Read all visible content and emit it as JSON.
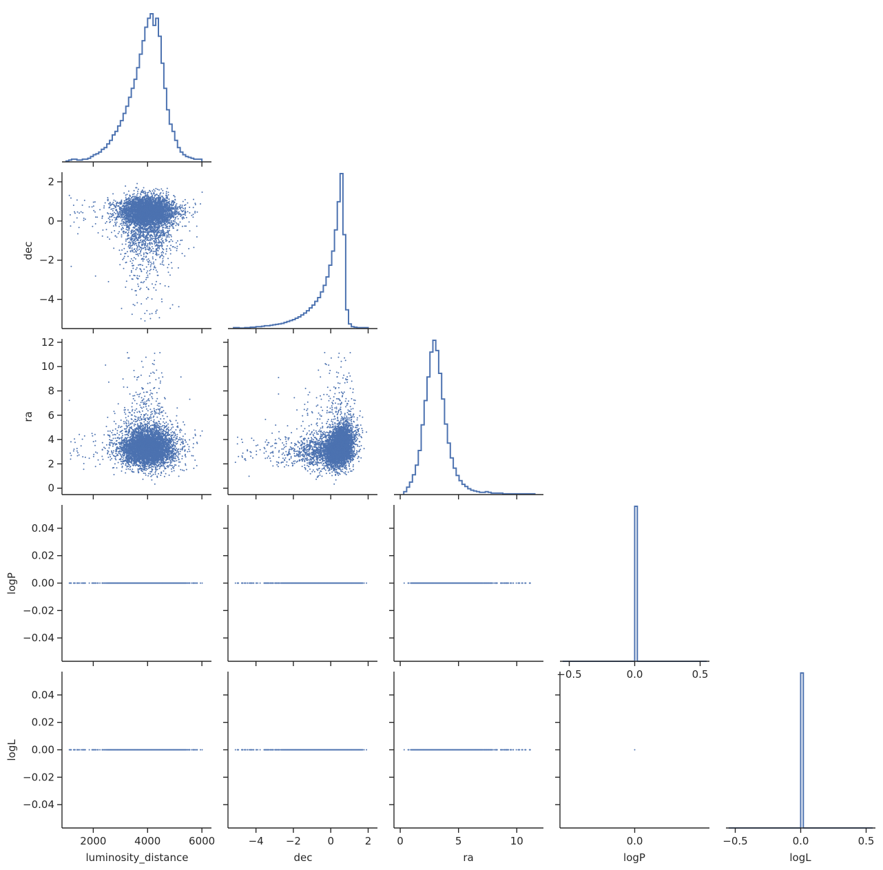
{
  "chart_data": {
    "type": "scatter",
    "layout": "corner-pair-plot",
    "variables": [
      "luminosity_distance",
      "dec",
      "ra",
      "logP",
      "logL"
    ],
    "axis_labels": {
      "luminosity_distance": "luminosity_distance",
      "dec": "dec",
      "ra": "ra",
      "logP": "logP",
      "logL": "logL"
    },
    "ranges": {
      "luminosity_distance": [
        950,
        6250
      ],
      "dec": [
        -5.35,
        2.35
      ],
      "ra": [
        -0.3,
        12.05
      ],
      "logP": [
        -0.055,
        0.055
      ],
      "logL": [
        -0.055,
        0.055
      ]
    },
    "ticks": {
      "luminosity_distance": {
        "values": [
          2000,
          4000,
          6000
        ],
        "labels": [
          "2000",
          "4000",
          "6000"
        ]
      },
      "dec": {
        "values": [
          -4,
          -2,
          0,
          2
        ],
        "labels": [
          "−4",
          "−2",
          "0",
          "2"
        ]
      },
      "ra": {
        "values": [
          0,
          5,
          10
        ],
        "labels": [
          "0",
          "5",
          "10"
        ]
      },
      "ra_y": {
        "values": [
          0,
          2,
          4,
          6,
          8,
          10,
          12
        ],
        "labels": [
          "0",
          "2",
          "4",
          "6",
          "8",
          "10",
          "12"
        ]
      },
      "logP": {
        "values": [
          -0.5,
          0.0,
          0.5
        ],
        "labels": [
          "−0.5",
          "0.0",
          "0.5"
        ]
      },
      "logL": {
        "values": [
          -0.5,
          0.0,
          0.5
        ],
        "labels": [
          "−0.5",
          "0.0",
          "0.5"
        ]
      },
      "logP_y": {
        "values": [
          -0.04,
          -0.02,
          0.0,
          0.02,
          0.04
        ],
        "labels": [
          "−0.04",
          "−0.02",
          "0.00",
          "0.02",
          "0.04"
        ]
      },
      "logL_y": {
        "values": [
          -0.04,
          -0.02,
          0.0,
          0.02,
          0.04
        ],
        "labels": [
          "−0.04",
          "−0.02",
          "0.00",
          "0.02",
          "0.04"
        ]
      },
      "dec_y": {
        "values": [
          -4,
          -2,
          0,
          2
        ],
        "labels": [
          "−4",
          "−2",
          "0",
          "2"
        ]
      }
    },
    "diag_hist_range": {
      "logP": [
        -0.55,
        0.55
      ],
      "logL": [
        -0.55,
        0.55
      ]
    },
    "histograms": {
      "luminosity_distance": {
        "edges": [
          1000,
          1100,
          1200,
          1300,
          1400,
          1500,
          1600,
          1700,
          1800,
          1900,
          2000,
          2100,
          2200,
          2300,
          2400,
          2500,
          2600,
          2700,
          2800,
          2900,
          3000,
          3100,
          3200,
          3300,
          3400,
          3500,
          3600,
          3700,
          3800,
          3900,
          4000,
          4100,
          4200,
          4300,
          4400,
          4500,
          4600,
          4700,
          4800,
          4900,
          5000,
          5100,
          5200,
          5300,
          5400,
          5500,
          5600,
          5700,
          5800,
          5900,
          6000
        ],
        "counts": [
          1,
          2,
          3,
          3,
          2,
          2,
          3,
          3,
          4,
          6,
          8,
          9,
          11,
          14,
          16,
          20,
          24,
          30,
          34,
          40,
          46,
          54,
          62,
          72,
          82,
          92,
          105,
          120,
          135,
          150,
          160,
          165,
          152,
          160,
          140,
          110,
          82,
          58,
          42,
          34,
          24,
          16,
          11,
          8,
          6,
          5,
          4,
          3,
          3,
          3
        ]
      },
      "dec": {
        "edges": [
          -5.2,
          -5.05,
          -4.9,
          -4.75,
          -4.6,
          -4.45,
          -4.3,
          -4.15,
          -4.0,
          -3.85,
          -3.7,
          -3.55,
          -3.4,
          -3.25,
          -3.1,
          -2.95,
          -2.8,
          -2.65,
          -2.5,
          -2.35,
          -2.2,
          -2.05,
          -1.9,
          -1.75,
          -1.6,
          -1.45,
          -1.3,
          -1.15,
          -1.0,
          -0.85,
          -0.7,
          -0.55,
          -0.4,
          -0.25,
          -0.1,
          0.05,
          0.2,
          0.35,
          0.5,
          0.65,
          0.8,
          0.95,
          1.1,
          1.25,
          1.4,
          1.55,
          1.7,
          1.85,
          2.0
        ],
        "counts": [
          2,
          2,
          1,
          1,
          2,
          2,
          3,
          3,
          4,
          4,
          5,
          6,
          6,
          7,
          8,
          9,
          10,
          11,
          13,
          15,
          17,
          19,
          22,
          25,
          29,
          33,
          38,
          44,
          50,
          58,
          66,
          78,
          92,
          110,
          135,
          165,
          210,
          270,
          330,
          200,
          40,
          10,
          4,
          3,
          2,
          2,
          2,
          2
        ]
      },
      "ra": {
        "edges": [
          0.3,
          0.55,
          0.8,
          1.05,
          1.3,
          1.55,
          1.8,
          2.05,
          2.3,
          2.55,
          2.8,
          3.05,
          3.3,
          3.55,
          3.8,
          4.05,
          4.3,
          4.55,
          4.8,
          5.05,
          5.3,
          5.55,
          5.8,
          6.05,
          6.3,
          6.55,
          6.8,
          7.05,
          7.3,
          7.55,
          7.8,
          8.05,
          8.3,
          8.55,
          8.8,
          9.05,
          9.3,
          9.55,
          9.8,
          10.05,
          10.3,
          10.55,
          10.8,
          11.05,
          11.3,
          11.55
        ],
        "counts": [
          4,
          10,
          17,
          27,
          40,
          60,
          95,
          128,
          160,
          194,
          210,
          196,
          165,
          130,
          96,
          70,
          50,
          36,
          26,
          19,
          14,
          11,
          8,
          6,
          5,
          4,
          3,
          3,
          4,
          3,
          2,
          2,
          2,
          2,
          1,
          1,
          1,
          1,
          1,
          1,
          1,
          1,
          1,
          1,
          1
        ]
      },
      "logP": {
        "bins": [
          [
            -0.55,
            0.0,
            0
          ],
          [
            0.0,
            0.02,
            100
          ],
          [
            0.02,
            0.55,
            0
          ]
        ]
      },
      "logL": {
        "bins": [
          [
            -0.55,
            0.0,
            0
          ],
          [
            0.0,
            0.02,
            100
          ],
          [
            0.02,
            0.55,
            0
          ]
        ]
      }
    },
    "sample_size": 5000,
    "series": [
      {
        "color": "#4c72b0"
      }
    ],
    "grid": false,
    "legend": "none"
  }
}
